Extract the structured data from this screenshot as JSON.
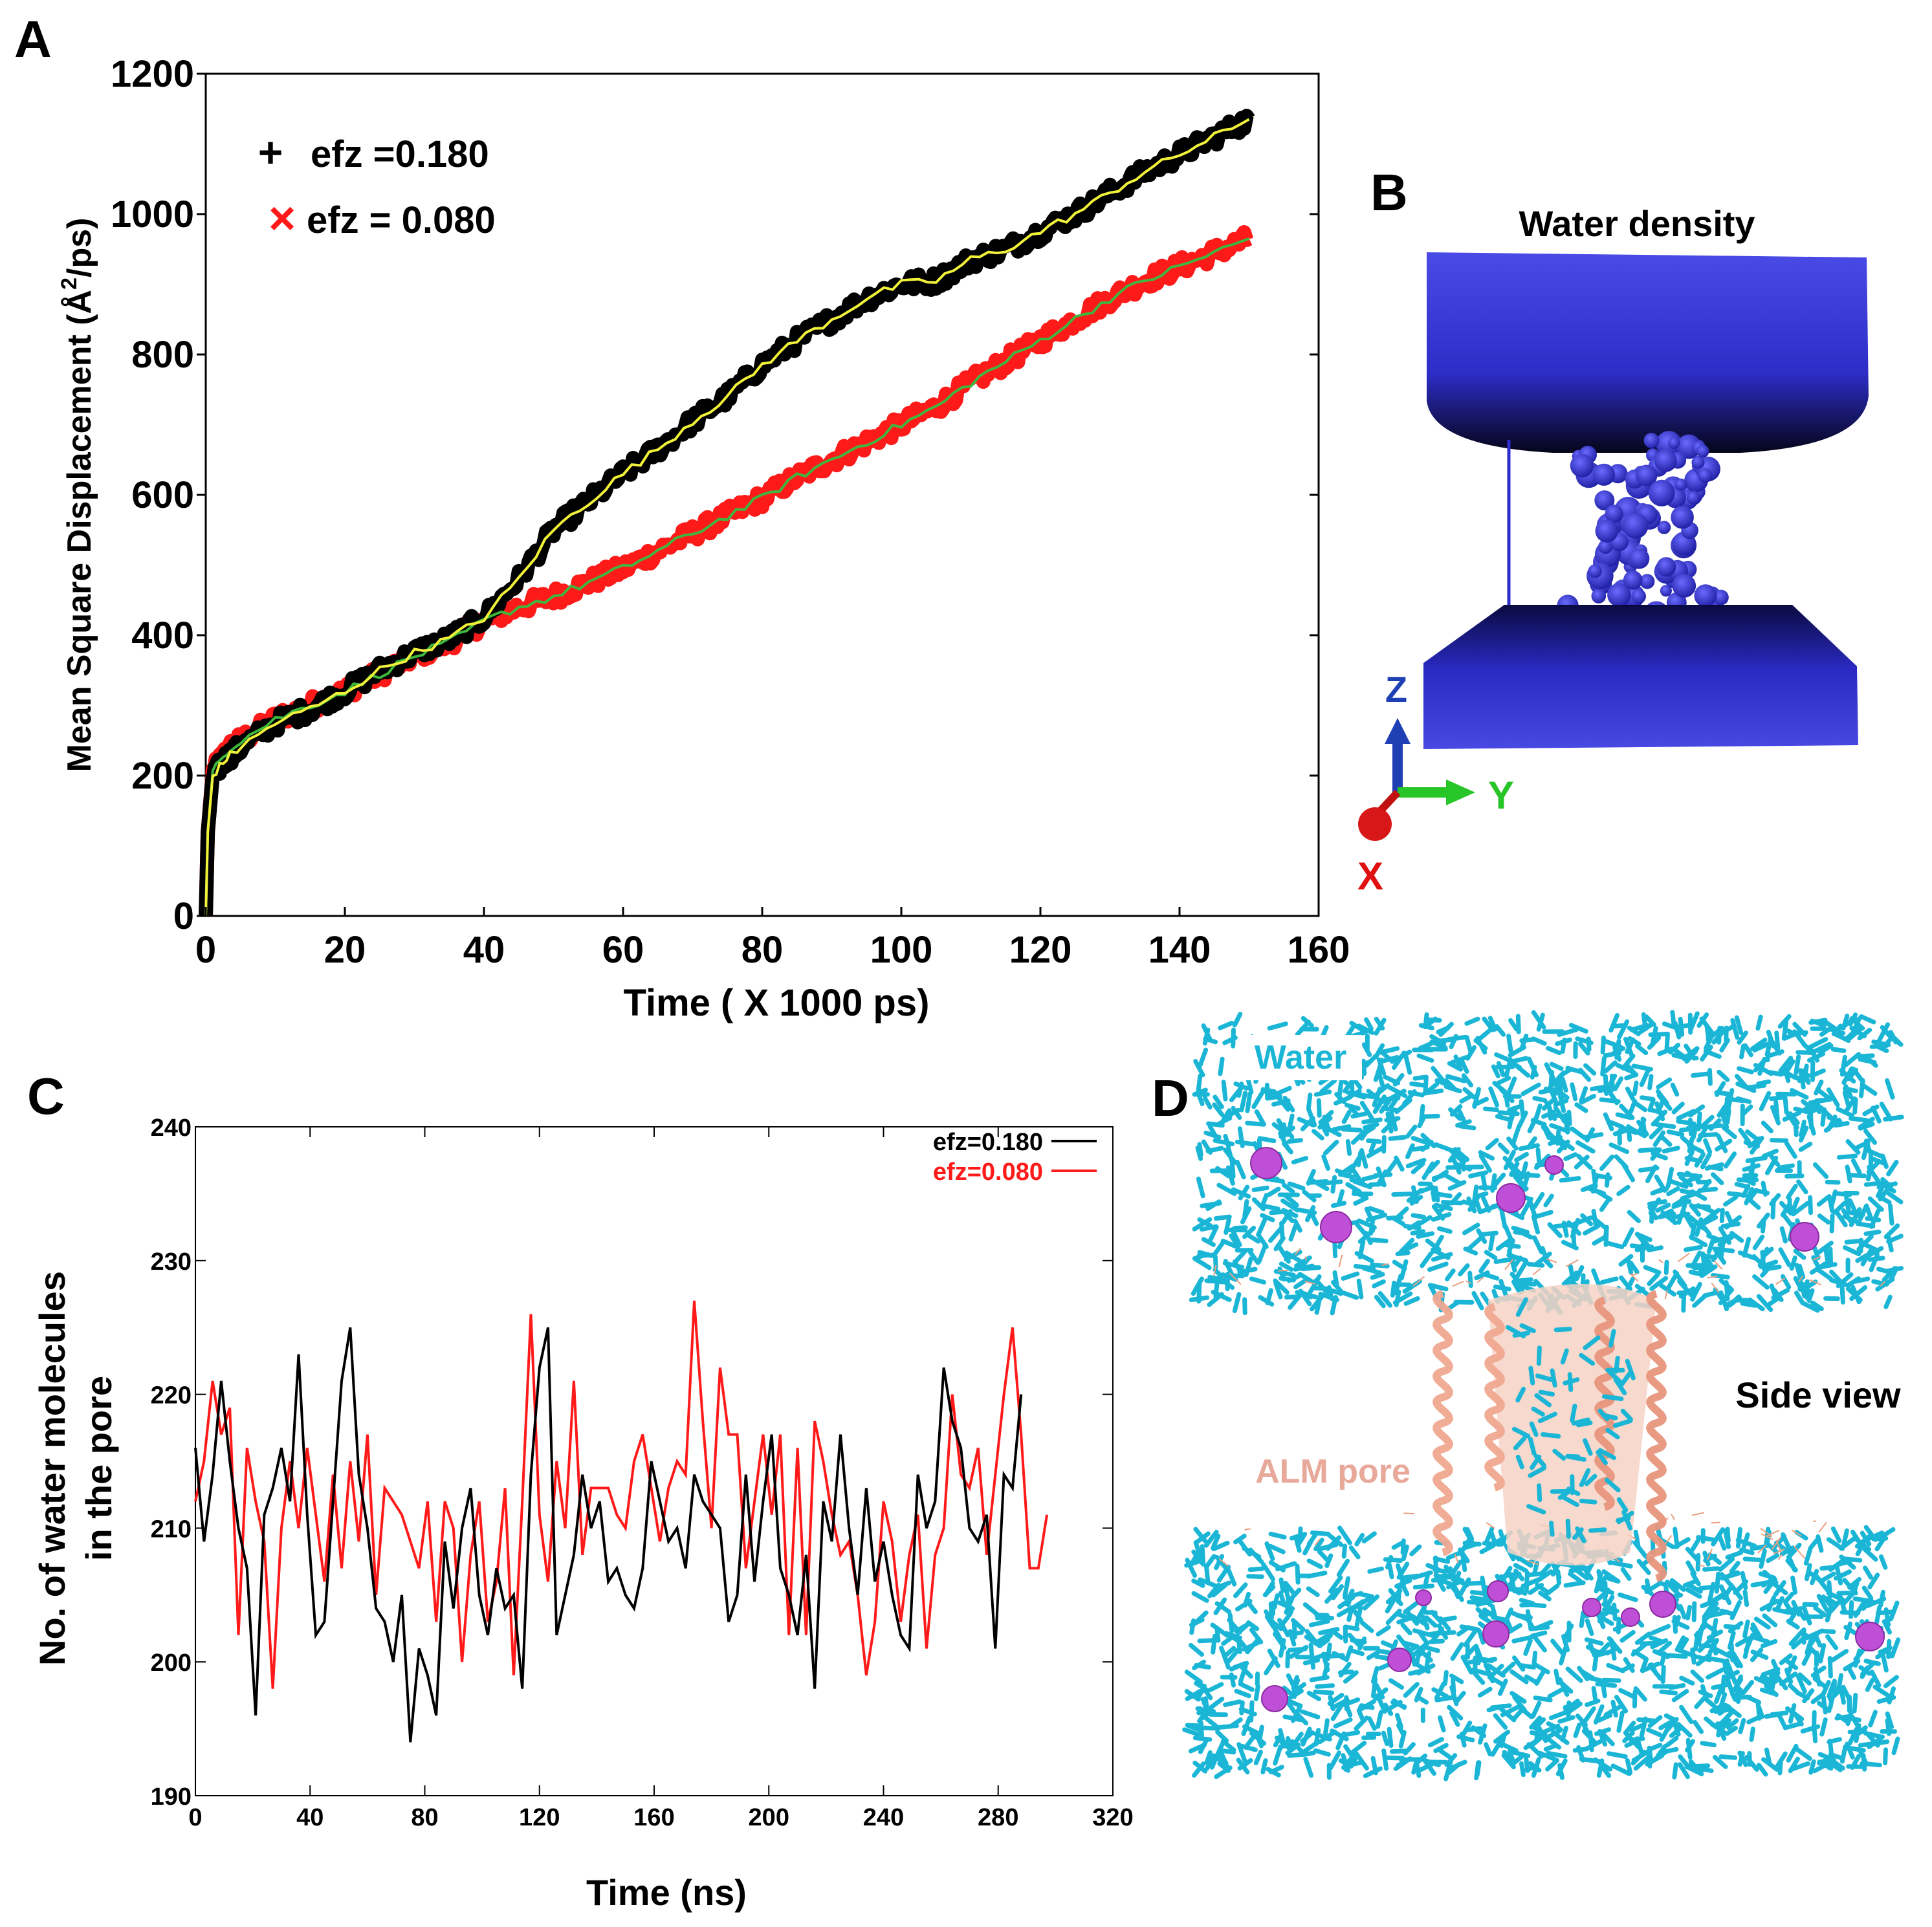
{
  "panels": {
    "A": {
      "letter": "A"
    },
    "B": {
      "letter": "B",
      "title": "Water density",
      "axes": {
        "z": "Z",
        "y": "Y",
        "x": "X"
      },
      "colors": {
        "water": "#2d2dcc",
        "z_axis": "#1f3fb5",
        "y_axis": "#27c527",
        "x_axis": "#e01010"
      }
    },
    "C": {
      "letter": "C"
    },
    "D": {
      "letter": "D",
      "label_water": "Water",
      "label_pore": "ALM pore",
      "label_view": "Side view",
      "colors": {
        "water": "#1bb6d6",
        "pore": "#f2b9a4",
        "ion": "#c04fd8",
        "label_pore": "#e8a89a"
      }
    }
  },
  "chart_data": [
    {
      "id": "A",
      "type": "line",
      "title": "",
      "xlabel": "Time ( X 1000 ps)",
      "ylabel_main": "Mean Square Displacement (Å",
      "ylabel_sup": "2",
      "ylabel_tail": "/ps)",
      "xlim": [
        0,
        160
      ],
      "ylim": [
        0,
        1200
      ],
      "xticks": [
        "0",
        "20",
        "40",
        "60",
        "80",
        "100",
        "120",
        "140",
        "160"
      ],
      "yticks": [
        "0",
        "200",
        "400",
        "600",
        "800",
        "1000",
        "1200"
      ],
      "legend": [
        {
          "marker": "+",
          "label": "efz =0.180",
          "color": "#000000"
        },
        {
          "marker": "×",
          "label": "efz = 0.080",
          "color": "#ff1a1a"
        }
      ],
      "series": [
        {
          "name": "efz =0.180",
          "color": "#000000",
          "smooth_color": "#f2f23a",
          "x": [
            0,
            0.3,
            1,
            3,
            5,
            10,
            15,
            20,
            25,
            30,
            35,
            40,
            45,
            50,
            55,
            60,
            65,
            70,
            75,
            80,
            85,
            90,
            95,
            100,
            105,
            110,
            115,
            120,
            125,
            130,
            135,
            140,
            145,
            150
          ],
          "y": [
            0,
            120,
            200,
            225,
            240,
            275,
            295,
            320,
            350,
            375,
            395,
            425,
            480,
            550,
            590,
            630,
            665,
            705,
            740,
            785,
            820,
            850,
            880,
            900,
            905,
            935,
            950,
            975,
            1000,
            1030,
            1060,
            1085,
            1110,
            1135
          ]
        },
        {
          "name": "efz = 0.080",
          "color": "#ff1a1a",
          "smooth_color": "#3db83d",
          "x": [
            0,
            0.3,
            1,
            3,
            5,
            10,
            15,
            20,
            25,
            30,
            35,
            40,
            45,
            50,
            55,
            60,
            65,
            70,
            75,
            80,
            85,
            90,
            95,
            100,
            105,
            110,
            115,
            120,
            125,
            130,
            135,
            140,
            145,
            150
          ],
          "y": [
            0,
            120,
            205,
            235,
            250,
            280,
            300,
            320,
            345,
            370,
            390,
            420,
            440,
            455,
            475,
            495,
            520,
            545,
            570,
            595,
            625,
            650,
            675,
            700,
            725,
            760,
            790,
            820,
            850,
            880,
            905,
            925,
            945,
            965
          ]
        }
      ]
    },
    {
      "id": "C",
      "type": "line",
      "title": "",
      "xlabel": "Time (ns)",
      "ylabel_line1": "No. of water molecules",
      "ylabel_line2": "in the pore",
      "xlim": [
        0,
        320
      ],
      "ylim": [
        190,
        240
      ],
      "xticks": [
        "0",
        "40",
        "80",
        "120",
        "160",
        "200",
        "240",
        "280",
        "320"
      ],
      "yticks": [
        "190",
        "200",
        "210",
        "220",
        "230",
        "240"
      ],
      "legend": [
        {
          "label": "efz=0.180",
          "color": "#000000"
        },
        {
          "label": "efz=0.080",
          "color": "#ff1a1a"
        }
      ],
      "x_step": 3,
      "series": [
        {
          "name": "efz=0.180",
          "color": "#000000",
          "values": [
            216,
            209,
            214,
            221,
            215,
            210,
            207,
            196,
            211,
            213,
            216,
            212,
            223,
            211,
            202,
            203,
            212,
            221,
            225,
            214,
            210,
            204,
            203,
            200,
            205,
            194,
            201,
            199,
            196,
            209,
            204,
            210,
            213,
            205,
            202,
            207,
            204,
            205,
            198,
            214,
            222,
            225,
            202,
            205,
            208,
            214,
            210,
            212,
            206,
            207,
            205,
            204,
            207,
            215,
            212,
            209,
            210,
            207,
            214,
            212,
            211,
            210,
            203,
            205,
            214,
            206,
            212,
            217,
            207,
            205,
            202,
            208,
            198,
            212,
            209,
            217,
            210,
            205,
            213,
            206,
            209,
            205,
            202,
            201,
            214,
            210,
            212,
            222,
            218,
            216,
            210,
            209,
            211,
            201,
            214,
            213,
            220
          ]
        },
        {
          "name": "efz=0.080",
          "color": "#ff1a1a",
          "values": [
            212,
            215,
            221,
            217,
            219,
            202,
            216,
            212,
            209,
            198,
            210,
            215,
            210,
            216,
            211,
            206,
            214,
            207,
            215,
            209,
            217,
            205,
            213,
            212,
            211,
            209,
            207,
            212,
            203,
            212,
            210,
            200,
            208,
            212,
            203,
            206,
            213,
            199,
            212,
            226,
            211,
            206,
            215,
            210,
            221,
            208,
            213,
            213,
            213,
            211,
            210,
            215,
            217,
            213,
            209,
            213,
            215,
            214,
            227,
            218,
            210,
            222,
            217,
            217,
            207,
            212,
            217,
            211,
            217,
            202,
            216,
            202,
            218,
            215,
            211,
            208,
            209,
            205,
            199,
            203,
            212,
            209,
            203,
            208,
            211,
            201,
            208,
            210,
            220,
            214,
            213,
            216,
            208,
            214,
            220,
            225,
            217,
            207,
            207,
            211
          ]
        }
      ]
    }
  ]
}
